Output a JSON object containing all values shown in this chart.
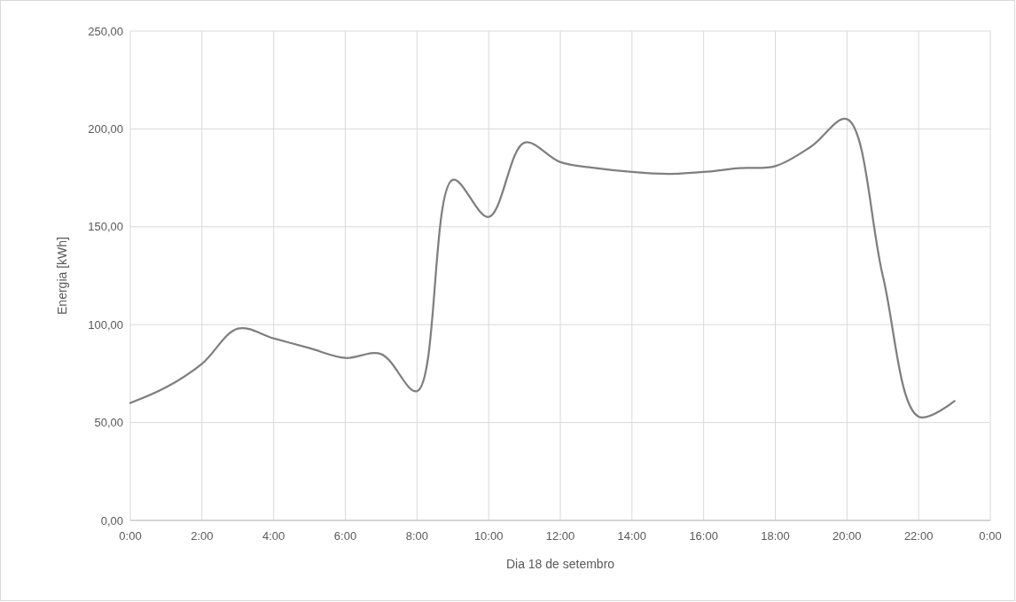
{
  "chart_data": {
    "type": "line",
    "xlabel": "Dia 18 de setembro",
    "ylabel": "Energia [kWh]",
    "x": [
      0,
      1,
      2,
      3,
      4,
      5,
      6,
      7,
      8,
      9,
      10,
      11,
      12,
      13,
      14,
      15,
      16,
      17,
      18,
      19,
      20,
      21,
      22,
      23
    ],
    "series": [
      {
        "color": "#7f7f7f",
        "values": [
          60,
          68,
          80,
          98,
          93,
          88,
          83,
          85,
          66,
          174,
          155,
          193,
          183,
          180,
          178,
          177,
          178,
          180,
          181,
          191,
          205,
          125,
          53,
          61
        ]
      }
    ],
    "xlim": [
      0,
      24
    ],
    "xticks": [
      {
        "value": 0,
        "label": "0:00"
      },
      {
        "value": 2,
        "label": "2:00"
      },
      {
        "value": 4,
        "label": "4:00"
      },
      {
        "value": 6,
        "label": "6:00"
      },
      {
        "value": 8,
        "label": "8:00"
      },
      {
        "value": 10,
        "label": "10:00"
      },
      {
        "value": 12,
        "label": "12:00"
      },
      {
        "value": 14,
        "label": "14:00"
      },
      {
        "value": 16,
        "label": "16:00"
      },
      {
        "value": 18,
        "label": "18:00"
      },
      {
        "value": 20,
        "label": "20:00"
      },
      {
        "value": 22,
        "label": "22:00"
      },
      {
        "value": 24,
        "label": "0:00"
      }
    ],
    "ylim": [
      0,
      250
    ],
    "yticks": [
      {
        "value": 0,
        "label": "0,00"
      },
      {
        "value": 50,
        "label": "50,00"
      },
      {
        "value": 100,
        "label": "100,00"
      },
      {
        "value": 150,
        "label": "150,00"
      },
      {
        "value": 200,
        "label": "200,00"
      },
      {
        "value": 250,
        "label": "250,00"
      }
    ],
    "grid": true,
    "line_style": "solid",
    "marker": "none"
  }
}
